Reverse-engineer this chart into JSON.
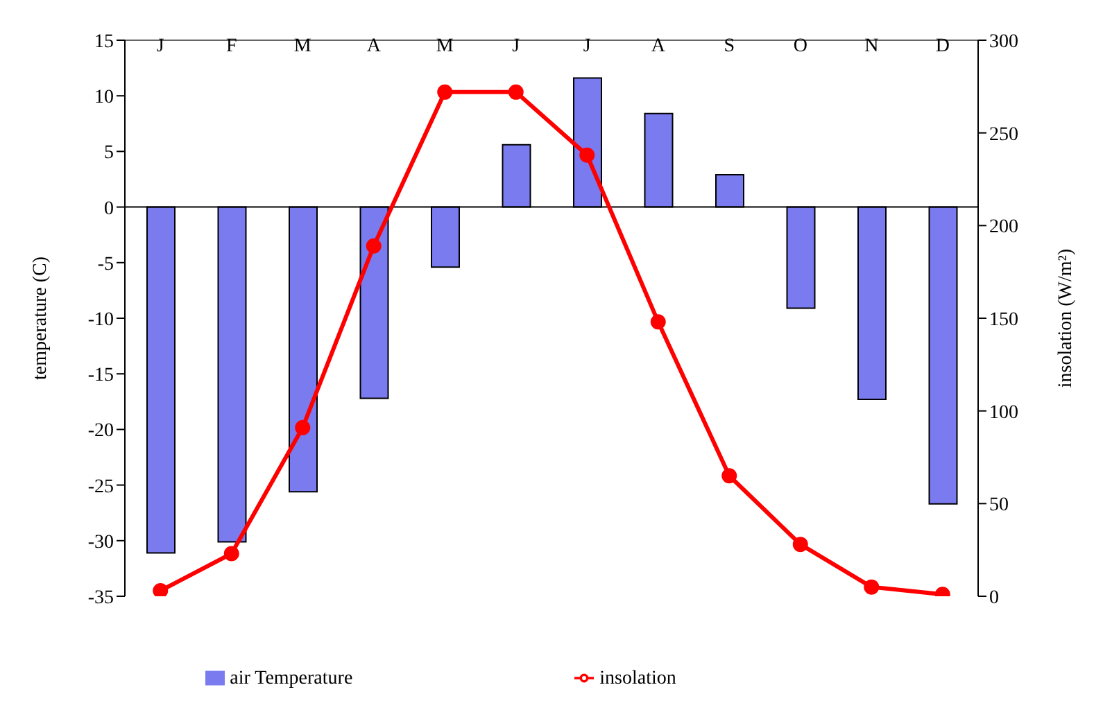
{
  "chart_data": {
    "type": "bar",
    "categories": [
      "J",
      "F",
      "M",
      "A",
      "M",
      "J",
      "J",
      "A",
      "S",
      "O",
      "N",
      "D"
    ],
    "ylabel": "temperature (C)",
    "y2label": "insolation (W/m²)",
    "series": [
      {
        "name": "air Temperature",
        "color": "#7b7bf0",
        "values": [
          -31.1,
          -30.1,
          -25.6,
          -17.2,
          -5.4,
          5.6,
          11.6,
          8.4,
          2.9,
          -9.1,
          -17.3,
          -26.7
        ]
      },
      {
        "name": "insolation",
        "type": "line",
        "axis": "y2",
        "color": "#ff0000",
        "marker": "circle",
        "values": [
          3,
          23,
          91,
          189,
          272,
          272,
          238,
          148,
          65,
          28,
          5,
          1
        ]
      }
    ],
    "ylim": [
      -35,
      15
    ],
    "yticks": [
      15,
      10,
      5,
      0,
      -5,
      -10,
      -15,
      -20,
      -25,
      -30,
      -35
    ],
    "y2lim": [
      0,
      300
    ],
    "y2ticks": [
      0,
      50,
      100,
      150,
      200,
      250,
      300
    ],
    "ref_lines": [
      {
        "axis": "y",
        "value": 0
      }
    ],
    "legend": "bottom"
  }
}
